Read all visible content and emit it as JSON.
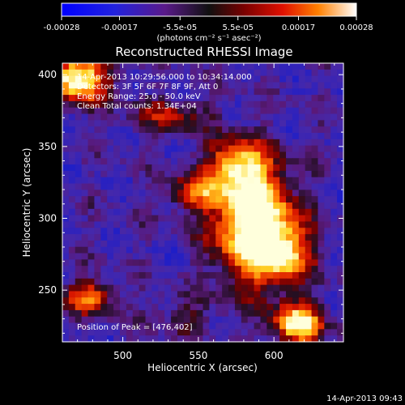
{
  "chart_data": {
    "type": "heatmap",
    "title": "Reconstructed RHESSI Image",
    "xlabel": "Heliocentric X (arcsec)",
    "ylabel": "Heliocentric Y (arcsec)",
    "xlim": [
      460,
      646
    ],
    "ylim": [
      214,
      408
    ],
    "x_ticks": [
      500,
      550,
      600
    ],
    "y_ticks": [
      250,
      300,
      350,
      400
    ],
    "colorbar": {
      "range": [
        -0.00028,
        0.00028
      ],
      "ticks": [
        "-0.00028",
        "-0.00017",
        "-5.5e-05",
        "5.5e-05",
        "0.00017",
        "0.00028"
      ],
      "tick_values": [
        -0.00028,
        -0.00017,
        -5.5e-05,
        5.5e-05,
        0.00017,
        0.00028
      ],
      "units_label": "(photons cm⁻² s⁻¹ asec⁻²)"
    },
    "annotations": [
      "14-Apr-2013 10:29:56.000 to 10:34:14.000",
      "Detectors: 3F 5F 6F 7F 8F 9F, Att 0",
      "Energy Range: 25.0 - 50.0 keV",
      "Clean     Total counts: 1.34E+04"
    ],
    "peak_label": "Position of Peak = [476,402]",
    "peak_position": [
      476,
      402
    ],
    "total_counts": 13400,
    "energy_range_kev": [
      25.0,
      50.0
    ],
    "timestamp": "14-Apr-2013 09:43",
    "sources": [
      {
        "x": 586,
        "y": 298,
        "sx": 18,
        "sy": 28,
        "amp": 1.0
      },
      {
        "x": 575,
        "y": 338,
        "sx": 14,
        "sy": 12,
        "amp": 0.55
      },
      {
        "x": 548,
        "y": 318,
        "sx": 14,
        "sy": 9,
        "amp": 0.45
      },
      {
        "x": 606,
        "y": 276,
        "sx": 14,
        "sy": 16,
        "amp": 0.55
      },
      {
        "x": 470,
        "y": 398,
        "sx": 14,
        "sy": 12,
        "amp": 0.9
      },
      {
        "x": 616,
        "y": 226,
        "sx": 12,
        "sy": 10,
        "amp": 0.8
      },
      {
        "x": 478,
        "y": 245,
        "sx": 12,
        "sy": 8,
        "amp": 0.55
      },
      {
        "x": 532,
        "y": 372,
        "sx": 18,
        "sy": 8,
        "amp": 0.35
      },
      {
        "x": 540,
        "y": 232,
        "sx": 16,
        "sy": 10,
        "amp": 0.2
      }
    ]
  }
}
